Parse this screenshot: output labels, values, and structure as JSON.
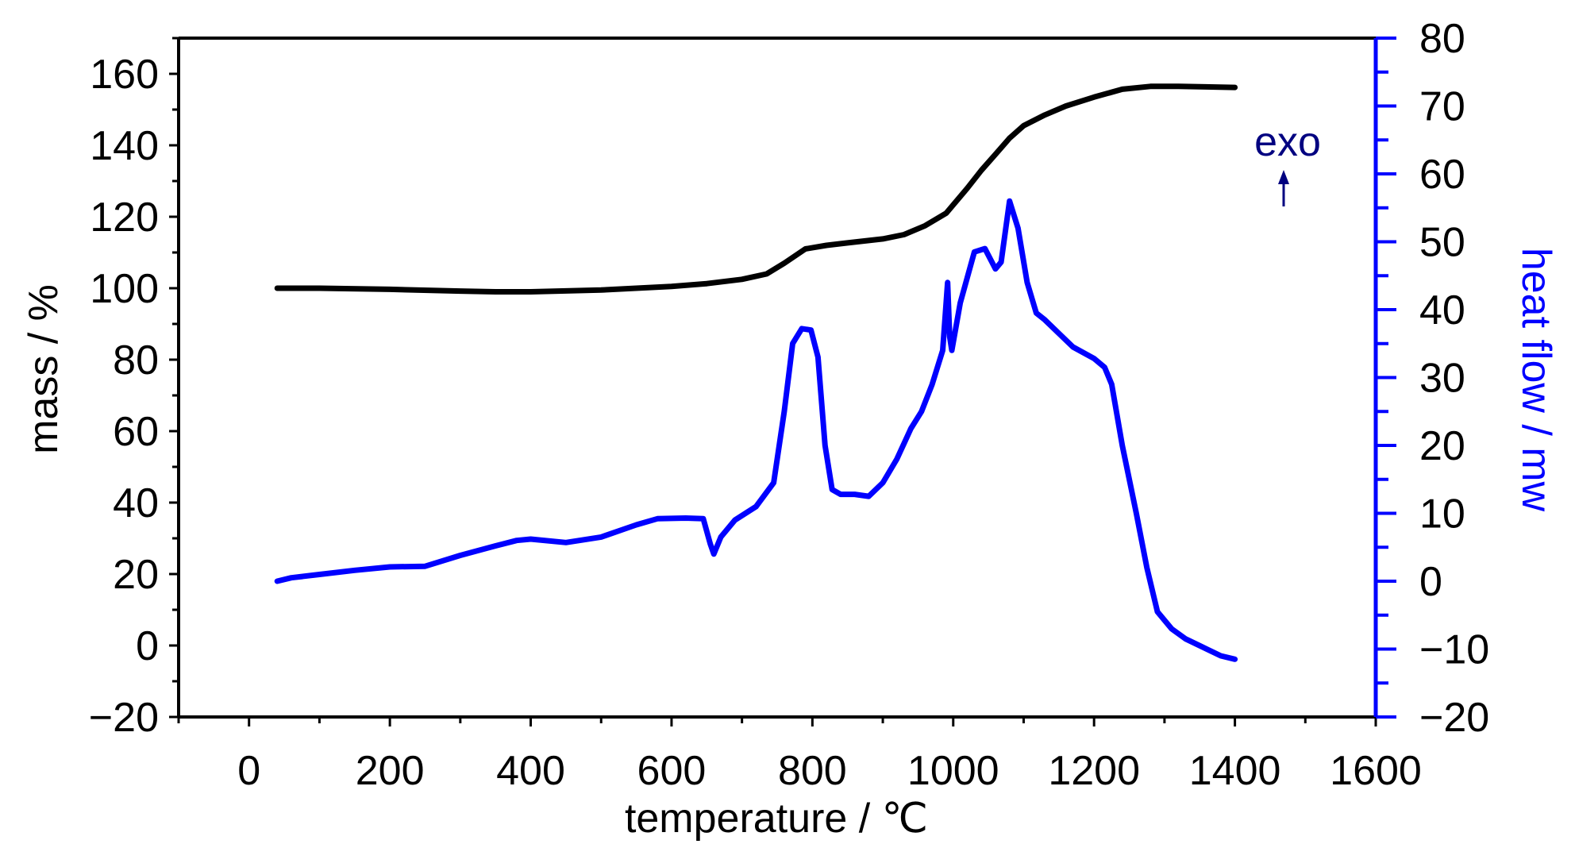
{
  "chart_data": {
    "type": "line",
    "xlabel": "temperature / ℃",
    "ylabel_left": "mass / %",
    "ylabel_right": "heat flow / mw",
    "annotation": "exo",
    "xlim": [
      -100,
      1600
    ],
    "ylim_left": [
      -20,
      170
    ],
    "ylim_right": [
      -20,
      80
    ],
    "x_ticks": [
      "0",
      "200",
      "400",
      "600",
      "800",
      "1000",
      "1200",
      "1400",
      "1600"
    ],
    "y_left_ticks": [
      "−20",
      "0",
      "20",
      "40",
      "60",
      "80",
      "100",
      "120",
      "140",
      "160"
    ],
    "y_right_ticks": [
      "−20",
      "−10",
      "0",
      "10",
      "20",
      "30",
      "40",
      "50",
      "60",
      "70",
      "80"
    ],
    "grid": false,
    "colors": {
      "mass": "#000000",
      "heat_flow": "#0000ff",
      "annotation": "#000080"
    },
    "series": [
      {
        "axis": "left",
        "color": "#000000",
        "points": [
          [
            40,
            100
          ],
          [
            100,
            100
          ],
          [
            200,
            99.7
          ],
          [
            300,
            99.2
          ],
          [
            350,
            99.0
          ],
          [
            400,
            99.0
          ],
          [
            500,
            99.5
          ],
          [
            600,
            100.5
          ],
          [
            650,
            101.3
          ],
          [
            700,
            102.5
          ],
          [
            735,
            104
          ],
          [
            760,
            107
          ],
          [
            790,
            111
          ],
          [
            820,
            112
          ],
          [
            850,
            112.7
          ],
          [
            900,
            113.8
          ],
          [
            930,
            115
          ],
          [
            960,
            117.5
          ],
          [
            990,
            121
          ],
          [
            1020,
            128
          ],
          [
            1040,
            133
          ],
          [
            1060,
            137.5
          ],
          [
            1080,
            142
          ],
          [
            1100,
            145.5
          ],
          [
            1130,
            148.5
          ],
          [
            1160,
            151
          ],
          [
            1200,
            153.5
          ],
          [
            1240,
            155.7
          ],
          [
            1280,
            156.5
          ],
          [
            1320,
            156.5
          ],
          [
            1400,
            156.2
          ]
        ]
      },
      {
        "axis": "right",
        "color": "#0000ff",
        "points": [
          [
            40,
            0
          ],
          [
            60,
            0.5
          ],
          [
            100,
            1
          ],
          [
            150,
            1.6
          ],
          [
            200,
            2.1
          ],
          [
            250,
            2.2
          ],
          [
            300,
            3.8
          ],
          [
            350,
            5.2
          ],
          [
            380,
            6.0
          ],
          [
            400,
            6.2
          ],
          [
            450,
            5.7
          ],
          [
            500,
            6.5
          ],
          [
            550,
            8.3
          ],
          [
            580,
            9.2
          ],
          [
            620,
            9.3
          ],
          [
            645,
            9.2
          ],
          [
            655,
            5.5
          ],
          [
            660,
            4.0
          ],
          [
            670,
            6.5
          ],
          [
            690,
            9.0
          ],
          [
            720,
            11.0
          ],
          [
            745,
            14.5
          ],
          [
            760,
            25
          ],
          [
            772,
            35
          ],
          [
            785,
            37.2
          ],
          [
            798,
            37.0
          ],
          [
            808,
            33
          ],
          [
            818,
            20
          ],
          [
            828,
            13.5
          ],
          [
            840,
            12.8
          ],
          [
            860,
            12.8
          ],
          [
            880,
            12.5
          ],
          [
            900,
            14.5
          ],
          [
            920,
            18
          ],
          [
            940,
            22.5
          ],
          [
            955,
            25
          ],
          [
            970,
            29
          ],
          [
            985,
            34
          ],
          [
            992,
            44
          ],
          [
            995,
            36
          ],
          [
            998,
            34
          ],
          [
            1010,
            41
          ],
          [
            1030,
            48.5
          ],
          [
            1045,
            49
          ],
          [
            1060,
            46
          ],
          [
            1068,
            47
          ],
          [
            1080,
            56
          ],
          [
            1092,
            52
          ],
          [
            1105,
            44
          ],
          [
            1118,
            39.5
          ],
          [
            1130,
            38.5
          ],
          [
            1150,
            36.5
          ],
          [
            1170,
            34.5
          ],
          [
            1200,
            32.8
          ],
          [
            1215,
            31.5
          ],
          [
            1225,
            29
          ],
          [
            1240,
            20
          ],
          [
            1260,
            10
          ],
          [
            1275,
            2
          ],
          [
            1290,
            -4.5
          ],
          [
            1310,
            -7
          ],
          [
            1330,
            -8.5
          ],
          [
            1350,
            -9.5
          ],
          [
            1380,
            -11
          ],
          [
            1400,
            -11.5
          ]
        ]
      }
    ]
  }
}
